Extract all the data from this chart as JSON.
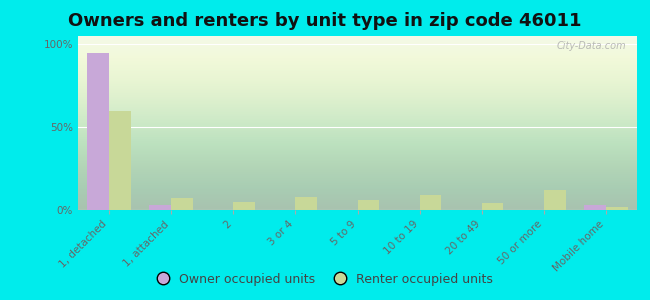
{
  "title": "Owners and renters by unit type in zip code 46011",
  "categories": [
    "1, detached",
    "1, attached",
    "2",
    "3 or 4",
    "5 to 9",
    "10 to 19",
    "20 to 49",
    "50 or more",
    "Mobile home"
  ],
  "owner_values": [
    95,
    3,
    0,
    0,
    0,
    0,
    0,
    0,
    3
  ],
  "renter_values": [
    60,
    7,
    5,
    8,
    6,
    9,
    4,
    12,
    2
  ],
  "owner_color": "#c8a8d8",
  "renter_color": "#c8d898",
  "background_color": "#00ecec",
  "ylabel_ticks": [
    "0%",
    "50%",
    "100%"
  ],
  "ytick_vals": [
    0,
    50,
    100
  ],
  "ylim": [
    0,
    105
  ],
  "bar_width": 0.35,
  "legend_owner": "Owner occupied units",
  "legend_renter": "Renter occupied units",
  "title_fontsize": 13,
  "tick_fontsize": 7.5,
  "legend_fontsize": 9,
  "watermark": "City-Data.com"
}
